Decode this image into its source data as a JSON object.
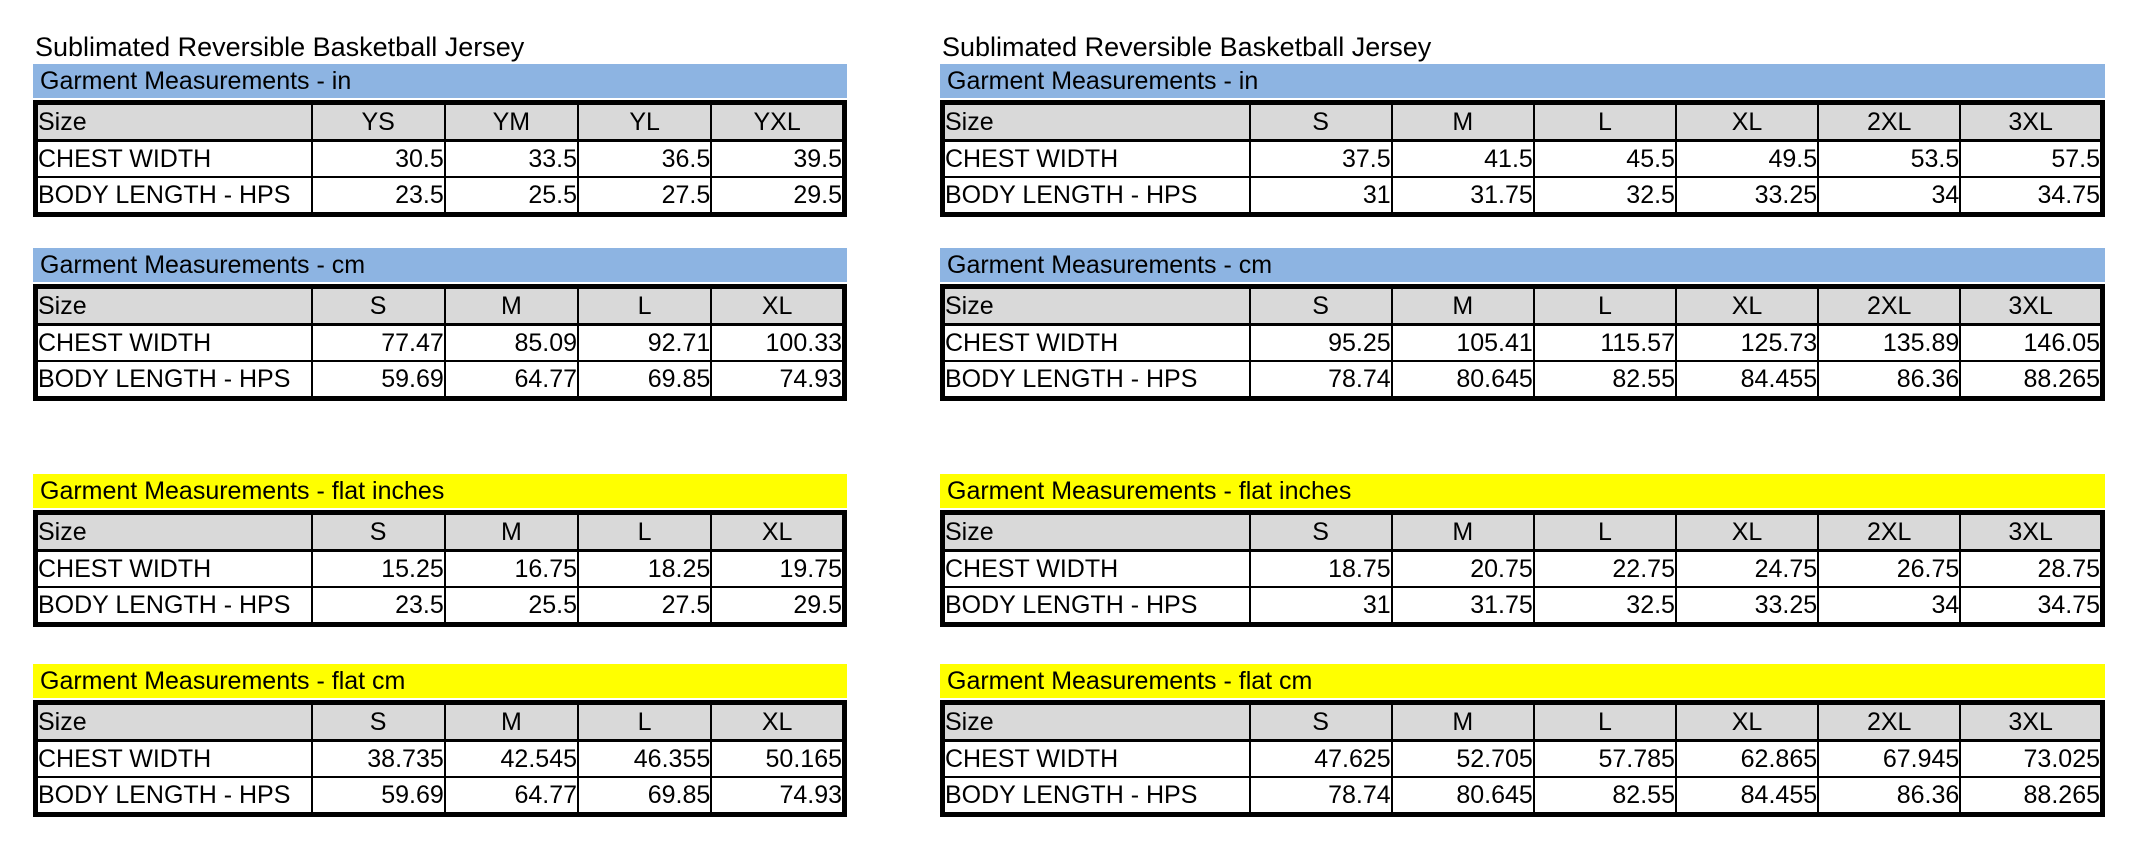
{
  "document": {
    "colors": {
      "blue_band": "#8DB4E2",
      "yellow_band": "#FFFF00",
      "header_gray": "#D9D9D9",
      "border": "#000000",
      "paper": "#FFFFFF"
    }
  },
  "panels": [
    {
      "id": "left",
      "title": "Sublimated Reversible Basketball Jersey",
      "tables": [
        {
          "band_label": "Garment Measurements - in",
          "band_color": "blue",
          "columns": [
            "Size",
            "YS",
            "YM",
            "YL",
            "YXL"
          ],
          "rows": [
            {
              "label": "CHEST WIDTH",
              "values": [
                "30.5",
                "33.5",
                "36.5",
                "39.5"
              ]
            },
            {
              "label": "BODY LENGTH - HPS",
              "values": [
                "23.5",
                "25.5",
                "27.5",
                "29.5"
              ]
            }
          ]
        },
        {
          "band_label": "Garment Measurements - cm",
          "band_color": "blue",
          "columns": [
            "Size",
            "S",
            "M",
            "L",
            "XL"
          ],
          "rows": [
            {
              "label": "CHEST WIDTH",
              "values": [
                "77.47",
                "85.09",
                "92.71",
                "100.33"
              ]
            },
            {
              "label": "BODY LENGTH - HPS",
              "values": [
                "59.69",
                "64.77",
                "69.85",
                "74.93"
              ]
            }
          ]
        },
        {
          "band_label": "Garment Measurements - flat inches",
          "band_color": "yellow",
          "columns": [
            "Size",
            "S",
            "M",
            "L",
            "XL"
          ],
          "rows": [
            {
              "label": "CHEST WIDTH",
              "values": [
                "15.25",
                "16.75",
                "18.25",
                "19.75"
              ]
            },
            {
              "label": "BODY LENGTH - HPS",
              "values": [
                "23.5",
                "25.5",
                "27.5",
                "29.5"
              ]
            }
          ]
        },
        {
          "band_label": "Garment Measurements - flat cm",
          "band_color": "yellow",
          "columns": [
            "Size",
            "S",
            "M",
            "L",
            "XL"
          ],
          "rows": [
            {
              "label": "CHEST WIDTH",
              "values": [
                "38.735",
                "42.545",
                "46.355",
                "50.165"
              ]
            },
            {
              "label": "BODY LENGTH - HPS",
              "values": [
                "59.69",
                "64.77",
                "69.85",
                "74.93"
              ]
            }
          ]
        }
      ]
    },
    {
      "id": "right",
      "title": "Sublimated Reversible Basketball Jersey",
      "tables": [
        {
          "band_label": "Garment Measurements - in",
          "band_color": "blue",
          "columns": [
            "Size",
            "S",
            "M",
            "L",
            "XL",
            "2XL",
            "3XL"
          ],
          "rows": [
            {
              "label": "CHEST WIDTH",
              "values": [
                "37.5",
                "41.5",
                "45.5",
                "49.5",
                "53.5",
                "57.5"
              ]
            },
            {
              "label": "BODY LENGTH - HPS",
              "values": [
                "31",
                "31.75",
                "32.5",
                "33.25",
                "34",
                "34.75"
              ]
            }
          ]
        },
        {
          "band_label": "Garment Measurements - cm",
          "band_color": "blue",
          "columns": [
            "Size",
            "S",
            "M",
            "L",
            "XL",
            "2XL",
            "3XL"
          ],
          "rows": [
            {
              "label": "CHEST WIDTH",
              "values": [
                "95.25",
                "105.41",
                "115.57",
                "125.73",
                "135.89",
                "146.05"
              ]
            },
            {
              "label": "BODY LENGTH - HPS",
              "values": [
                "78.74",
                "80.645",
                "82.55",
                "84.455",
                "86.36",
                "88.265"
              ]
            }
          ]
        },
        {
          "band_label": "Garment Measurements - flat inches",
          "band_color": "yellow",
          "columns": [
            "Size",
            "S",
            "M",
            "L",
            "XL",
            "2XL",
            "3XL"
          ],
          "rows": [
            {
              "label": "CHEST WIDTH",
              "values": [
                "18.75",
                "20.75",
                "22.75",
                "24.75",
                "26.75",
                "28.75"
              ]
            },
            {
              "label": "BODY LENGTH - HPS",
              "values": [
                "31",
                "31.75",
                "32.5",
                "33.25",
                "34",
                "34.75"
              ]
            }
          ]
        },
        {
          "band_label": "Garment Measurements - flat cm",
          "band_color": "yellow",
          "columns": [
            "Size",
            "S",
            "M",
            "L",
            "XL",
            "2XL",
            "3XL"
          ],
          "rows": [
            {
              "label": "CHEST WIDTH",
              "values": [
                "47.625",
                "52.705",
                "57.785",
                "62.865",
                "67.945",
                "73.025"
              ]
            },
            {
              "label": "BODY LENGTH - HPS",
              "values": [
                "78.74",
                "80.645",
                "82.55",
                "84.455",
                "86.36",
                "88.265"
              ]
            }
          ]
        }
      ]
    }
  ]
}
